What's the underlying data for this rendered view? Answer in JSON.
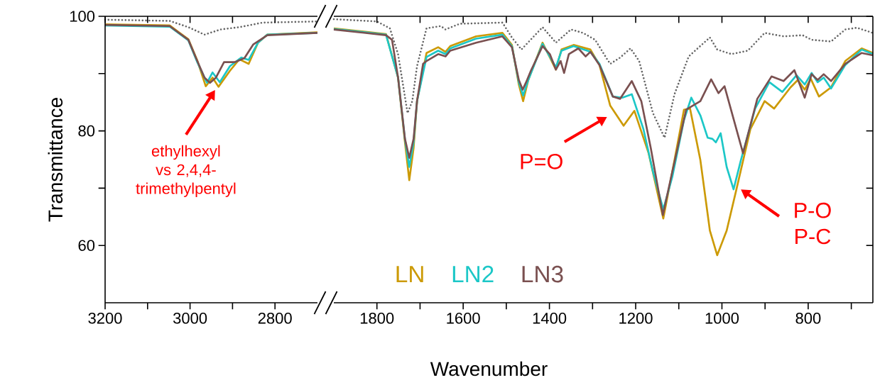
{
  "chart_data": [
    {
      "type": "line",
      "ylabel": "Transmittance",
      "xlim": [
        3200,
        2700
      ],
      "ylim": [
        50,
        100
      ],
      "xticks": [
        3200,
        {
          "value": 3100,
          "label": null
        },
        3000,
        {
          "value": 2900,
          "label": null
        },
        2800
      ],
      "yticks": [
        60,
        {
          "value": 70,
          "label": null
        },
        80,
        {
          "value": 90,
          "label": null
        },
        100
      ],
      "annotations": [
        "ethylhexyl vs 2,4,4-trimethylpentyl"
      ],
      "series": [
        {
          "color": "#666666",
          "line_style": "dotted",
          "x": [
            3200,
            3048,
            3004,
            2966,
            2928,
            2884,
            2829,
            2700
          ],
          "values": [
            99.4,
            99.2,
            98.1,
            96.8,
            97.7,
            98.1,
            98.9,
            99.1
          ]
        },
        {
          "color": "#cc9a06",
          "x": [
            3200,
            3048,
            3004,
            2983,
            2963,
            2947,
            2933,
            2906,
            2884,
            2862,
            2840,
            2818,
            2700
          ],
          "values": [
            98.6,
            98.4,
            96,
            92.3,
            87.8,
            89.3,
            87.7,
            90.5,
            92.5,
            91.7,
            95.4,
            96.8,
            97.2
          ]
        },
        {
          "color": "#1cc7c7",
          "x": [
            3200,
            3048,
            3004,
            2983,
            2960,
            2947,
            2930,
            2906,
            2879,
            2862,
            2840,
            2818,
            2700
          ],
          "values": [
            98.4,
            98.2,
            95.8,
            92,
            88.4,
            90.2,
            88.5,
            91.3,
            92.8,
            92.4,
            95.4,
            96.8,
            97.1
          ]
        },
        {
          "color": "#7a5050",
          "x": [
            3200,
            3048,
            3004,
            2983,
            2966,
            2953,
            2939,
            2920,
            2895,
            2872,
            2851,
            2818,
            2700
          ],
          "values": [
            98.5,
            98.3,
            95.9,
            92.2,
            89.3,
            88.4,
            89.3,
            92,
            92,
            92.7,
            95.1,
            96.7,
            97.1
          ]
        }
      ]
    },
    {
      "type": "line",
      "xlabel": "Wavenumber",
      "xlim": [
        1900,
        650
      ],
      "ylim": [
        50,
        100
      ],
      "tick_labels": "x",
      "legend": "bottom",
      "xticks": [
        1800,
        {
          "value": 1700,
          "label": null
        },
        1600,
        {
          "value": 1500,
          "label": null
        },
        1400,
        {
          "value": 1300,
          "label": null
        },
        1200,
        {
          "value": 1100,
          "label": null
        },
        1000,
        {
          "value": 900,
          "label": null
        },
        800,
        {
          "value": 700,
          "label": null
        }
      ],
      "yticks": [
        60,
        70,
        80,
        90,
        100
      ],
      "annotations": [
        "P=O",
        "P-O P-C"
      ],
      "series": [
        {
          "color": "#666666",
          "line_style": "dotted",
          "x": [
            1900,
            1800,
            1770,
            1751,
            1729,
            1718,
            1707,
            1685,
            1652,
            1641,
            1608,
            1509,
            1487,
            1465,
            1416,
            1385,
            1350,
            1322,
            1294,
            1267,
            1259,
            1236,
            1212,
            1192,
            1160,
            1133,
            1110,
            1077,
            1028,
            1011,
            978,
            940,
            901,
            857,
            813,
            792,
            747,
            714,
            687,
            650
          ],
          "values": [
            99.5,
            99.1,
            97.9,
            93.4,
            83.1,
            85.2,
            91.3,
            97.9,
            98.3,
            97.7,
            98.7,
            98.9,
            96.3,
            94.2,
            98.1,
            95.4,
            97.7,
            97.1,
            95.9,
            92.6,
            91.7,
            92.8,
            94.4,
            92.2,
            83.1,
            78.8,
            86.4,
            93.0,
            96.3,
            94.2,
            93.4,
            94.0,
            97.1,
            96.5,
            96.7,
            95.9,
            95.6,
            97.7,
            98.0,
            97.1
          ]
        },
        {
          "name": "LN",
          "color": "#cc9a06",
          "x": [
            1900,
            1779,
            1751,
            1735,
            1725,
            1715,
            1707,
            1685,
            1658,
            1641,
            1630,
            1570,
            1509,
            1487,
            1471,
            1461,
            1449,
            1416,
            1385,
            1372,
            1344,
            1305,
            1284,
            1259,
            1228,
            1203,
            1170,
            1136,
            1110,
            1088,
            1074,
            1050,
            1028,
            1011,
            989,
            967,
            934,
            901,
            879,
            841,
            824,
            808,
            794,
            775,
            747,
            714,
            676,
            650
          ],
          "values": [
            97.9,
            96.9,
            89.3,
            78,
            71.4,
            77,
            85.2,
            93.6,
            94.6,
            93.8,
            94.8,
            96.5,
            97.1,
            95,
            88.1,
            85.2,
            88.9,
            95.4,
            90.7,
            94.2,
            95.0,
            94.2,
            91.5,
            84.4,
            80.9,
            83.5,
            76.1,
            64.7,
            74.9,
            83.7,
            83.9,
            74.9,
            62.6,
            58.3,
            62.6,
            69.6,
            80.3,
            85.2,
            83.9,
            87.6,
            88.9,
            87.2,
            89.1,
            86.0,
            87.6,
            92.2,
            94.4,
            93.6
          ]
        },
        {
          "name": "LN2",
          "color": "#1cc7c7",
          "x": [
            1900,
            1779,
            1751,
            1735,
            1725,
            1715,
            1707,
            1685,
            1658,
            1641,
            1630,
            1570,
            1509,
            1487,
            1471,
            1461,
            1449,
            1416,
            1385,
            1372,
            1344,
            1305,
            1284,
            1253,
            1231,
            1209,
            1182,
            1160,
            1136,
            1115,
            1088,
            1071,
            1050,
            1033,
            1022,
            1014,
            1003,
            989,
            973,
            956,
            923,
            890,
            860,
            827,
            808,
            792,
            778,
            764,
            747,
            714,
            676,
            650
          ],
          "values": [
            97.8,
            96.8,
            89.3,
            78.5,
            73.7,
            78,
            85.2,
            92.9,
            94,
            93.4,
            94.4,
            96.1,
            96.8,
            94.8,
            88.5,
            86.2,
            88.9,
            95.2,
            91.1,
            94.0,
            94.8,
            93.8,
            91.7,
            86.0,
            85.8,
            86.4,
            80.3,
            72.9,
            66.3,
            72.0,
            81.9,
            85.8,
            82.7,
            78.8,
            78.6,
            78.0,
            79.6,
            73.7,
            69.8,
            74.9,
            83.9,
            88.5,
            86.8,
            89.7,
            88.1,
            90.1,
            88.5,
            89.3,
            87.4,
            91.5,
            94.2,
            93.4
          ]
        },
        {
          "name": "LN3",
          "color": "#7a5050",
          "x": [
            1900,
            1779,
            1765,
            1751,
            1735,
            1725,
            1715,
            1707,
            1693,
            1685,
            1658,
            1641,
            1630,
            1570,
            1509,
            1487,
            1471,
            1462,
            1454,
            1443,
            1416,
            1399,
            1385,
            1374,
            1366,
            1355,
            1333,
            1316,
            1305,
            1284,
            1253,
            1236,
            1209,
            1187,
            1165,
            1137,
            1115,
            1083,
            1050,
            1025,
            1008,
            994,
            951,
            918,
            885,
            857,
            832,
            808,
            792,
            778,
            764,
            747,
            714,
            676,
            650
          ],
          "values": [
            97.7,
            96.7,
            95.9,
            89.3,
            78.6,
            75.3,
            78.6,
            85.2,
            91.7,
            92.2,
            93.4,
            93.0,
            94.0,
            95.4,
            96.5,
            94.6,
            88.9,
            87.2,
            88.5,
            90.5,
            94.8,
            93.4,
            90.7,
            92.2,
            90.1,
            93.4,
            94.4,
            93.0,
            93.8,
            91.5,
            86.0,
            85.6,
            88.7,
            85.2,
            77.0,
            65.3,
            72.9,
            83.7,
            85.2,
            89.0,
            86.6,
            87.8,
            76.1,
            85.6,
            89.5,
            88.7,
            90.6,
            85.8,
            89.9,
            88.9,
            89.9,
            88.7,
            91.7,
            93.6,
            93.2
          ]
        }
      ]
    }
  ]
}
